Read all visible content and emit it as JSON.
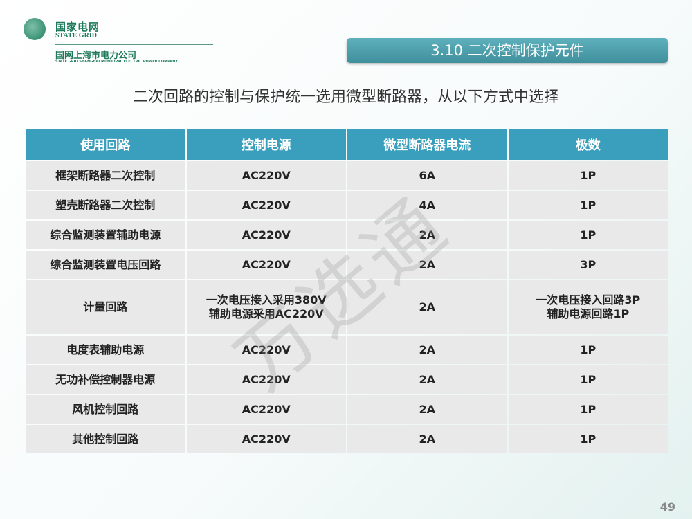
{
  "logo": {
    "cn": "国家电网",
    "en": "STATE GRID",
    "company": "国网上海市电力公司",
    "company_en": "STATE GRID SHANGHAI MUNICIPAL ELECTRIC POWER COMPANY"
  },
  "title": "3.10 二次控制保护元件",
  "subtitle": "二次回路的控制与保护统一选用微型断路器，从以下方式中选择",
  "table": {
    "headers": [
      "使用回路",
      "控制电源",
      "微型断路器电流",
      "极数"
    ],
    "rows": [
      [
        "框架断路器二次控制",
        "AC220V",
        "6A",
        "1P"
      ],
      [
        "塑壳断路器二次控制",
        "AC220V",
        "4A",
        "1P"
      ],
      [
        "综合监测装置辅助电源",
        "AC220V",
        "2A",
        "1P"
      ],
      [
        "综合监测装置电压回路",
        "AC220V",
        "2A",
        "3P"
      ],
      [
        "计量回路",
        "一次电压接入采用380V\n辅助电源采用AC220V",
        "2A",
        "一次电压接入回路3P\n辅助电源回路1P"
      ],
      [
        "电度表辅助电源",
        "AC220V",
        "2A",
        "1P"
      ],
      [
        "无功补偿控制器电源",
        "AC220V",
        "2A",
        "1P"
      ],
      [
        "风机控制回路",
        "AC220V",
        "2A",
        "1P"
      ],
      [
        "其他控制回路",
        "AC220V",
        "2A",
        "1P"
      ]
    ]
  },
  "watermark": "万选通",
  "page_number": "49"
}
